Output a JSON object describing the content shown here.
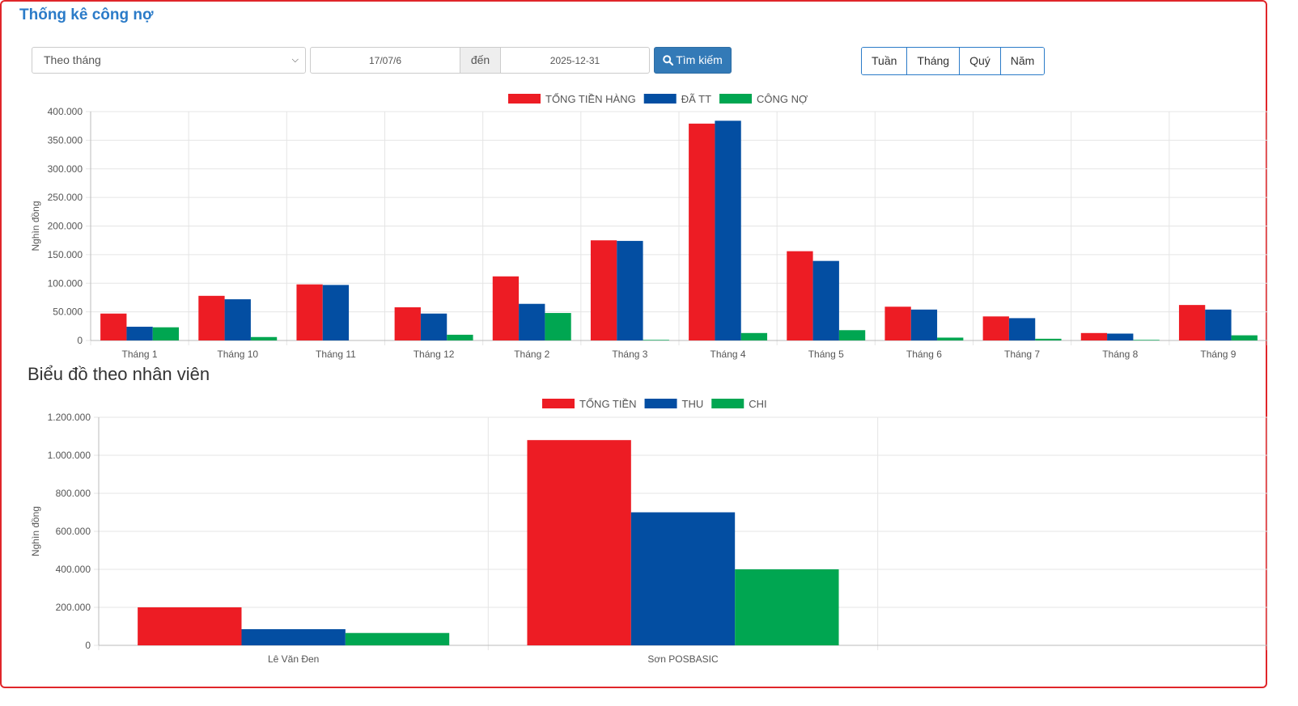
{
  "header": {
    "title": "Thống kê công nợ"
  },
  "filters": {
    "mode_select": "Theo tháng",
    "date_from": "17/07/6",
    "separator": "đến",
    "date_to": "2025-12-31",
    "search_label": "Tìm kiếm",
    "periods": [
      "Tuần",
      "Tháng",
      "Quý",
      "Năm"
    ]
  },
  "section2_title": "Biểu đồ theo nhân viên",
  "colors": {
    "red": "#ed1c24",
    "blue": "#034ea2",
    "green": "#00a651",
    "title_blue": "#2b7bc8"
  },
  "chart_data": [
    {
      "type": "bar",
      "title": "",
      "ylabel": "Nghìn đồng",
      "ylim": [
        0,
        400000
      ],
      "yticks": [
        0,
        50000,
        100000,
        150000,
        200000,
        250000,
        300000,
        350000,
        400000
      ],
      "ytick_labels": [
        "0",
        "50.000",
        "100.000",
        "150.000",
        "200.000",
        "250.000",
        "300.000",
        "350.000",
        "400.000"
      ],
      "legend_position": "top",
      "grid": true,
      "categories": [
        "Tháng 1",
        "Tháng 10",
        "Tháng 11",
        "Tháng 12",
        "Tháng 2",
        "Tháng 3",
        "Tháng 4",
        "Tháng 5",
        "Tháng 6",
        "Tháng 7",
        "Tháng 8",
        "Tháng 9"
      ],
      "series": [
        {
          "name": "TỔNG TIỀN HÀNG",
          "color": "#ed1c24",
          "values": [
            47000,
            78000,
            98000,
            58000,
            112000,
            175000,
            379000,
            156000,
            59000,
            42000,
            13000,
            62000
          ]
        },
        {
          "name": "ĐÃ TT",
          "color": "#034ea2",
          "values": [
            24000,
            72000,
            97000,
            47000,
            64000,
            174000,
            384000,
            139000,
            54000,
            39000,
            12000,
            54000
          ]
        },
        {
          "name": "CÔNG NỢ",
          "color": "#00a651",
          "values": [
            23000,
            6000,
            0,
            10000,
            48000,
            1000,
            13000,
            18000,
            5000,
            3000,
            1000,
            9000
          ]
        }
      ]
    },
    {
      "type": "bar",
      "title": "",
      "ylabel": "Nghìn đồng",
      "ylim": [
        0,
        1200000
      ],
      "yticks": [
        0,
        200000,
        400000,
        600000,
        800000,
        1000000,
        1200000
      ],
      "ytick_labels": [
        "0",
        "200.000",
        "400.000",
        "600.000",
        "800.000",
        "1.000.000",
        "1.200.000"
      ],
      "legend_position": "top",
      "grid": true,
      "categories": [
        "Lê Văn Đen",
        "Sơn POSBASIC",
        ""
      ],
      "series": [
        {
          "name": "TỔNG TIỀN",
          "color": "#ed1c24",
          "values": [
            200000,
            1080000,
            0
          ]
        },
        {
          "name": "THU",
          "color": "#034ea2",
          "values": [
            85000,
            700000,
            0
          ]
        },
        {
          "name": "CHI",
          "color": "#00a651",
          "values": [
            65000,
            400000,
            0
          ]
        }
      ]
    }
  ]
}
